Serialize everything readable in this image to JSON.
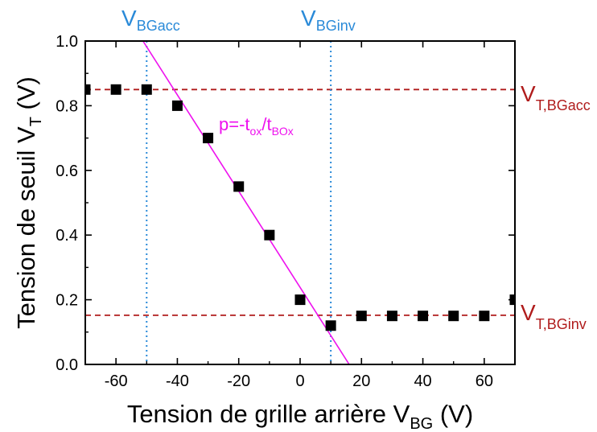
{
  "chart_data": {
    "type": "scatter",
    "xlabel": {
      "main": "Tension de grille arrière V",
      "sub": "BG",
      "tail": " (V)"
    },
    "ylabel": {
      "main": "Tension de seuil V",
      "sub": "T",
      "tail": " (V)"
    },
    "xlim": [
      -70,
      70
    ],
    "ylim": [
      0.0,
      1.0
    ],
    "xticks": [
      -60,
      -40,
      -20,
      0,
      20,
      40,
      60
    ],
    "yticks": [
      0.0,
      0.2,
      0.4,
      0.6,
      0.8,
      1.0
    ],
    "xtick_labels": [
      "-60",
      "-40",
      "-20",
      "0",
      "20",
      "40",
      "60"
    ],
    "ytick_labels": [
      "0.0",
      "0.2",
      "0.4",
      "0.6",
      "0.8",
      "1.0"
    ],
    "grid": false,
    "series": [
      {
        "x": [
          -70,
          -60,
          -50,
          -40,
          -30,
          -20,
          -10,
          0,
          10,
          20,
          30,
          40,
          50,
          60,
          70
        ],
        "y": [
          0.85,
          0.85,
          0.85,
          0.8,
          0.7,
          0.55,
          0.4,
          0.2,
          0.12,
          0.15,
          0.15,
          0.15,
          0.15,
          0.15,
          0.2
        ],
        "color": "#000000"
      }
    ],
    "fit_line": {
      "label": {
        "prefix": "p=-t",
        "sub1": "ox",
        "mid": "/t",
        "sub2": "BOx"
      },
      "points": [
        [
          -51.2,
          1.0
        ],
        [
          16.0,
          0.0
        ]
      ],
      "color": "#ee11ee"
    },
    "hlines": [
      {
        "y": 0.85,
        "label": {
          "main": "V",
          "sub": "T,BGacc"
        },
        "color": "#b01c1c"
      },
      {
        "y": 0.152,
        "label": {
          "main": "V",
          "sub": "T,BGinv"
        },
        "color": "#b01c1c"
      }
    ],
    "vlines": [
      {
        "x": -50,
        "label": {
          "main": "V",
          "sub": "BGacc"
        },
        "color": "#2a8ad8"
      },
      {
        "x": 10,
        "label": {
          "main": "V",
          "sub": "BGinv"
        },
        "color": "#2a8ad8"
      }
    ]
  }
}
